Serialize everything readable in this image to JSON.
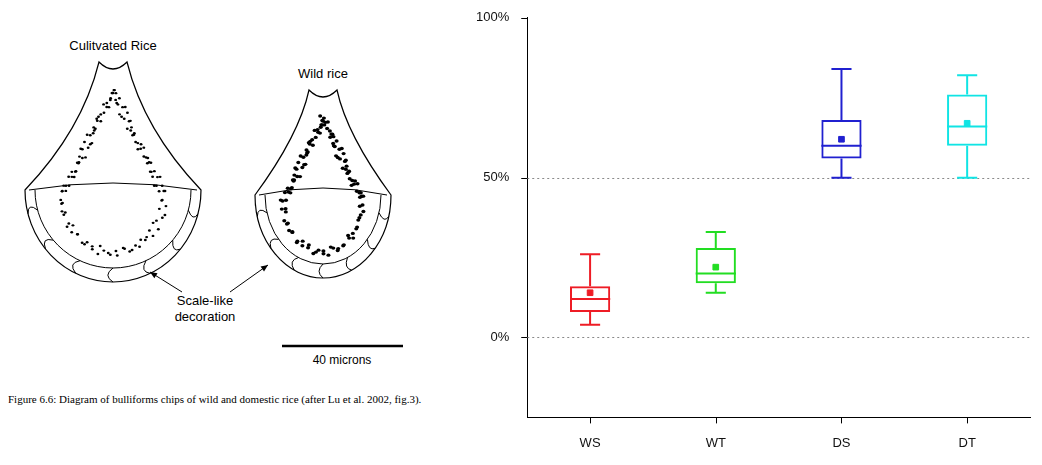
{
  "diagram": {
    "titles": [
      "Culitvated Rice",
      "Wild rice"
    ],
    "annotation": "Scale-like decoration",
    "scale_bar": "40 microns",
    "caption": "Figure 6.6: Diagram of bulliforms chips of wild and domestic rice (after Lu et al. 2002, fig.3)."
  },
  "chart_data": {
    "type": "box",
    "categories": [
      "WS",
      "WT",
      "DS",
      "DT"
    ],
    "colors": [
      "#ee1c25",
      "#22dd22",
      "#2020d0",
      "#10e4e4"
    ],
    "min": [
      4,
      14,
      50,
      50
    ],
    "q1": [
      8,
      17,
      56,
      60
    ],
    "median": [
      12,
      20,
      60,
      66
    ],
    "q3": [
      16,
      28,
      68,
      76
    ],
    "max": [
      26,
      33,
      84,
      82
    ],
    "mean": [
      14,
      22,
      62,
      67
    ],
    "marker": "square",
    "ylim": [
      -25,
      100
    ],
    "yticks": [
      {
        "value": 0,
        "label": "0%"
      },
      {
        "value": 50,
        "label": "50%"
      },
      {
        "value": 100,
        "label": "100%"
      }
    ],
    "grid": true
  }
}
